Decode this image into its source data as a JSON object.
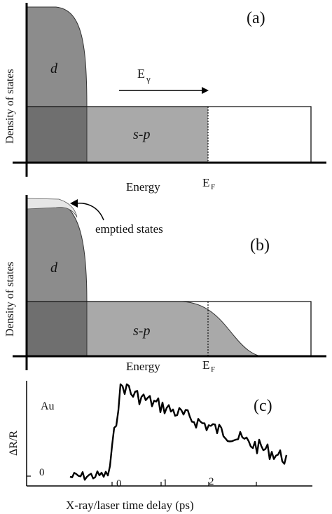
{
  "panel_a": {
    "tag": "(a)",
    "ylabel": "Density of states",
    "xlabel": "Energy",
    "d_label": "d",
    "sp_label": "s-p",
    "photon_label": "E",
    "photon_sub": "γ",
    "fermi_label": "E",
    "fermi_sub": "F"
  },
  "panel_b": {
    "tag": "(b)",
    "ylabel": "Density of states",
    "xlabel": "Energy",
    "d_label": "d",
    "sp_label": "s-p",
    "annotation": "emptied states",
    "fermi_label": "E",
    "fermi_sub": "F"
  },
  "panel_c": {
    "tag": "(c)",
    "ylabel": "ΔR/R",
    "xlabel": "X-ray/laser time delay (ps)",
    "sample": "Au",
    "zero_label": "0",
    "ticks": [
      "0",
      "1",
      "2"
    ]
  },
  "colors": {
    "d_band": "#8c8c8c",
    "sp_filled": "#a9a9a9",
    "overlap": "#6f6f6f",
    "trace": "#000000"
  }
}
